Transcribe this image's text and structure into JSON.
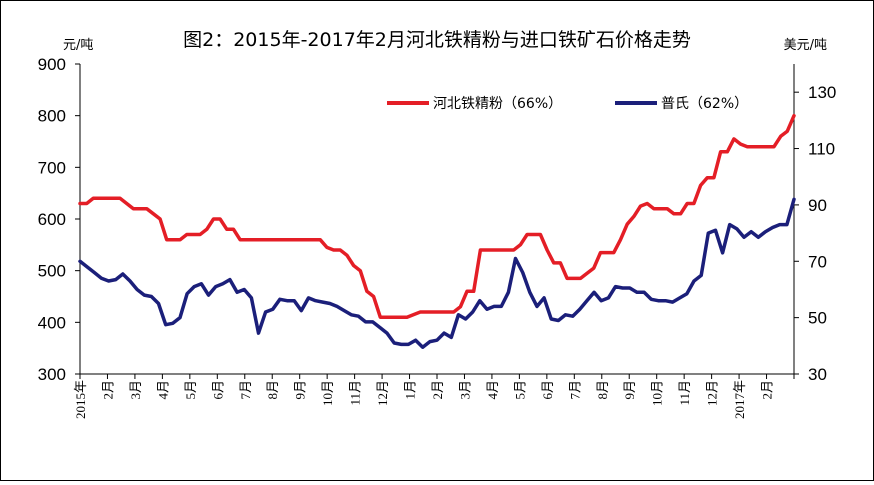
{
  "chart_data": {
    "type": "line",
    "title": "图2：2015年-2017年2月河北铁精粉与进口铁矿石价格走势",
    "left_unit": "元/吨",
    "right_unit": "美元/吨",
    "ylim_left": [
      300,
      900
    ],
    "yticks_left": [
      300,
      400,
      500,
      600,
      700,
      800,
      900
    ],
    "ylim_right": [
      30,
      140
    ],
    "yticks_right": [
      30,
      50,
      70,
      90,
      110,
      130
    ],
    "grid": false,
    "legend_position": "top-right",
    "x_labels": [
      "2015年",
      "2月",
      "3月",
      "4月",
      "5月",
      "6月",
      "7月",
      "8月",
      "9月",
      "10月",
      "11月",
      "12月",
      "1月",
      "2月",
      "3月",
      "4月",
      "5月",
      "6月",
      "7月",
      "8月",
      "9月",
      "10月",
      "11月",
      "12月",
      "2017年",
      "2月"
    ],
    "series": [
      {
        "name": "河北铁精粉（66%）",
        "axis": "left",
        "color": "#e41e26",
        "values": [
          630,
          630,
          640,
          640,
          640,
          640,
          640,
          630,
          620,
          620,
          620,
          610,
          600,
          560,
          560,
          560,
          570,
          570,
          570,
          580,
          600,
          600,
          580,
          580,
          560,
          560,
          560,
          560,
          560,
          560,
          560,
          560,
          560,
          560,
          560,
          560,
          560,
          545,
          540,
          540,
          530,
          510,
          500,
          460,
          450,
          410,
          410,
          410,
          410,
          410,
          415,
          420,
          420,
          420,
          420,
          420,
          420,
          430,
          460,
          460,
          540,
          540,
          540,
          540,
          540,
          540,
          550,
          570,
          570,
          570,
          540,
          515,
          515,
          485,
          485,
          485,
          495,
          505,
          535,
          535,
          535,
          560,
          590,
          605,
          625,
          630,
          620,
          620,
          620,
          610,
          610,
          630,
          630,
          665,
          680,
          680,
          730,
          730,
          755,
          745,
          740,
          740,
          740,
          740,
          740,
          760,
          770,
          800
        ]
      },
      {
        "name": "普氏（62%）",
        "axis": "right",
        "color": "#1b1f7a",
        "values": [
          70,
          68,
          66,
          64,
          63,
          63.5,
          65.5,
          63,
          60,
          58,
          57.5,
          55,
          47.5,
          48,
          50,
          58.5,
          61,
          62,
          58,
          61,
          62,
          63.5,
          59,
          60,
          57,
          44.5,
          52,
          53,
          56.5,
          56,
          56,
          52.5,
          57,
          56,
          55.5,
          55,
          54,
          52.5,
          51,
          50.5,
          48.5,
          48.5,
          46.5,
          44.5,
          41,
          40.5,
          40.5,
          42,
          39.5,
          41.5,
          42,
          44.5,
          43,
          51,
          49.5,
          52,
          56,
          53,
          54,
          54,
          59,
          71,
          66,
          59,
          54,
          57,
          49.5,
          49,
          51,
          50.5,
          53,
          56,
          59,
          56,
          57,
          61,
          60.5,
          60.5,
          59,
          59,
          56.5,
          56,
          56,
          55.5,
          57,
          58.5,
          63,
          65,
          80,
          81,
          73,
          83,
          81.5,
          78.5,
          80.5,
          78.5,
          80.5,
          82,
          83,
          83,
          92
        ]
      }
    ]
  }
}
